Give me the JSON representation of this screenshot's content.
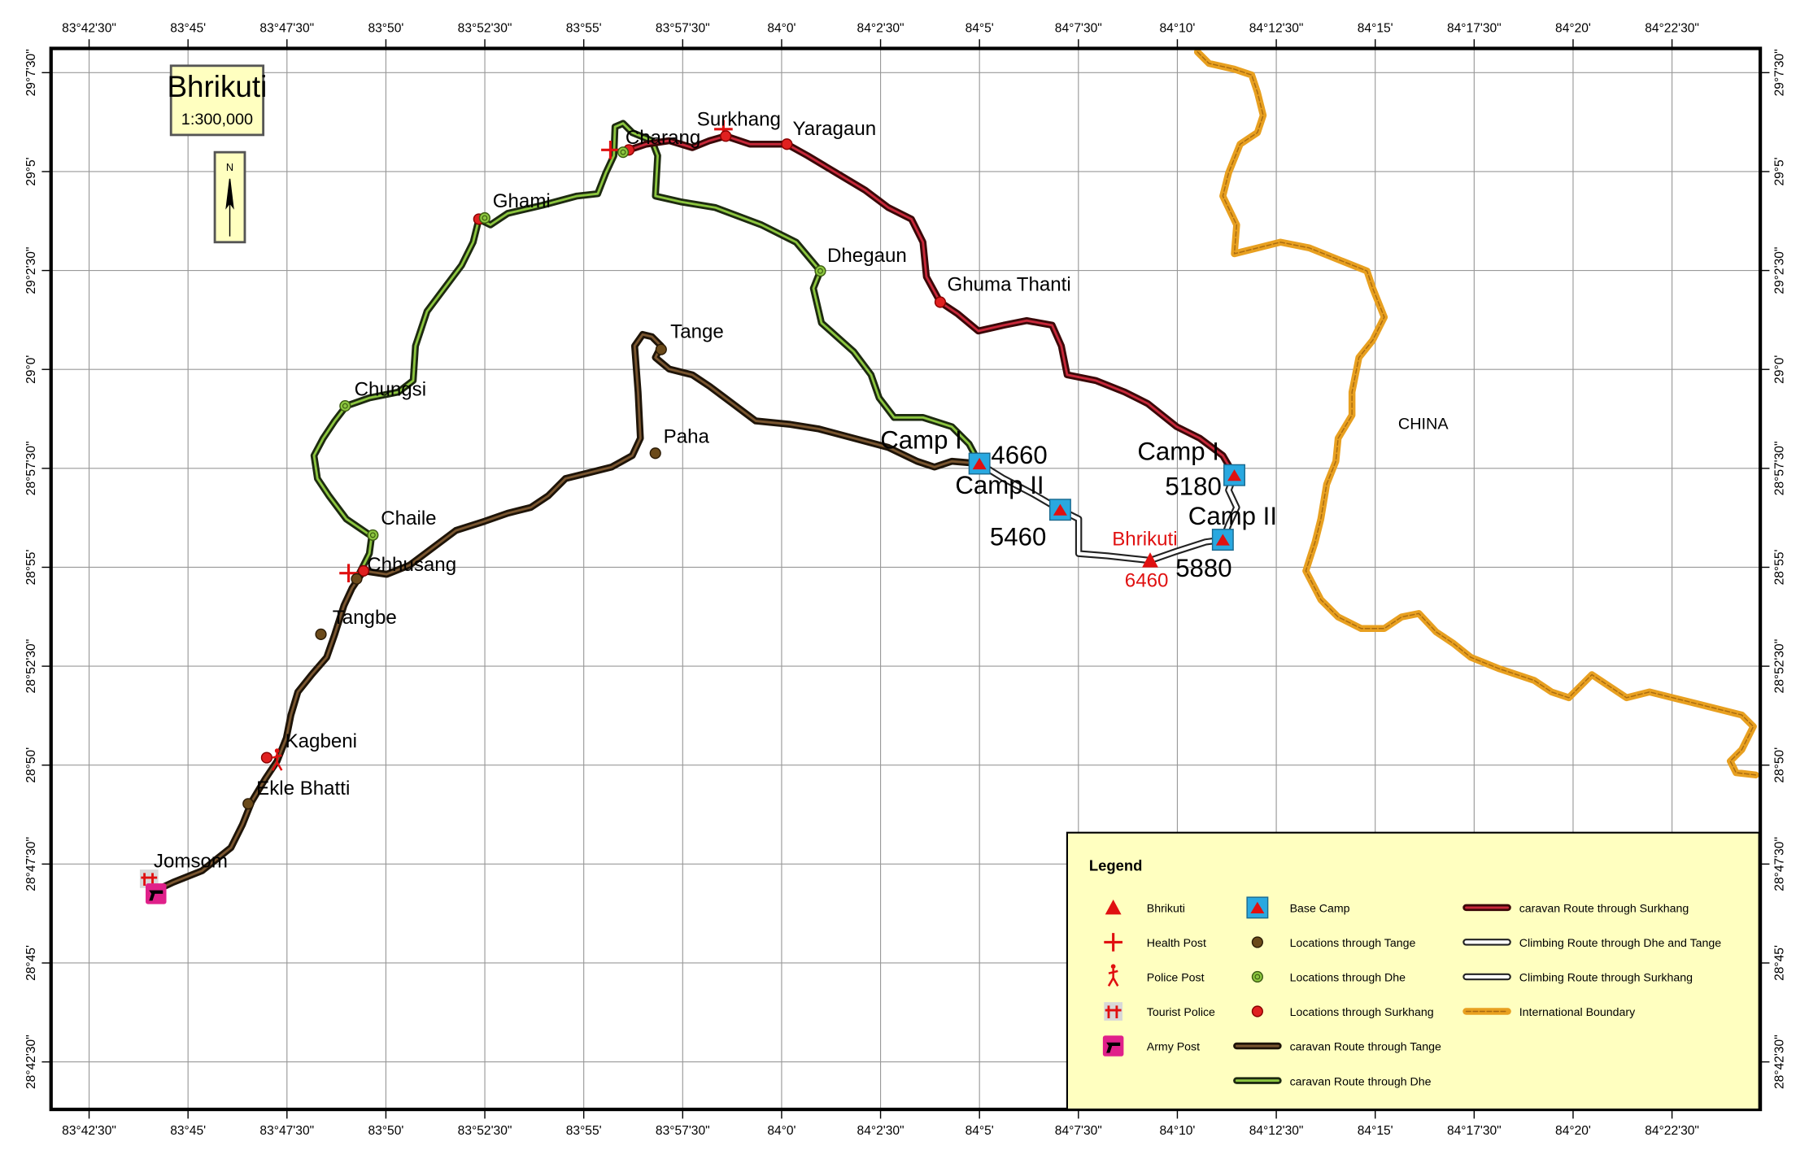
{
  "map": {
    "title": "Bhrikuti",
    "scale": "1:300,000",
    "north": "N",
    "lon_labels": [
      "83°42'30\"",
      "83°45'",
      "83°47'30\"",
      "83°50'",
      "83°52'30\"",
      "83°55'",
      "83°57'30\"",
      "84°0'",
      "84°2'30\"",
      "84°5'",
      "84°7'30\"",
      "84°10'",
      "84°12'30\"",
      "84°15'",
      "84°17'30\"",
      "84°20'",
      "84°22'30\""
    ],
    "lat_labels": [
      "29°7'30\"",
      "29°5'",
      "29°2'30\"",
      "29°0'",
      "28°57'30\"",
      "28°55'",
      "28°52'30\"",
      "28°50'",
      "28°47'30\"",
      "28°45'",
      "28°42'30\""
    ],
    "places": [
      "Jomsom",
      "Ekle Bhatti",
      "Kagbeni",
      "Tangbe",
      "Chhusang",
      "Chaile",
      "Chungsi",
      "Ghami",
      "Charang",
      "Surkhang",
      "Yaragaun",
      "Dhegaun",
      "Ghuma Thanti",
      "Tange",
      "Paha"
    ],
    "camps": [
      {
        "label": "Camp I",
        "elevation": 4660
      },
      {
        "label": "Camp II",
        "elevation": 5460
      },
      {
        "label": "Camp I",
        "elevation": 5180
      },
      {
        "label": "Camp II",
        "elevation": 5880
      }
    ],
    "summit": {
      "label": "Bhrikuti",
      "elevation": 6460
    },
    "country": "CHINA"
  },
  "legend": {
    "title": "Legend",
    "items": [
      "Bhrikuti",
      "Health Post",
      "Police Post",
      "Tourist Police",
      "Army Post",
      "Base Camp",
      "Locations through Tange",
      "Locations through Dhe",
      "Locations through Surkhang",
      "caravan Route through Tange",
      "caravan Route through Dhe",
      "caravan Route through Surkhang",
      "Climbing Route through Dhe and Tange",
      "Climbing Route through Surkhang",
      "International Boundary"
    ]
  }
}
